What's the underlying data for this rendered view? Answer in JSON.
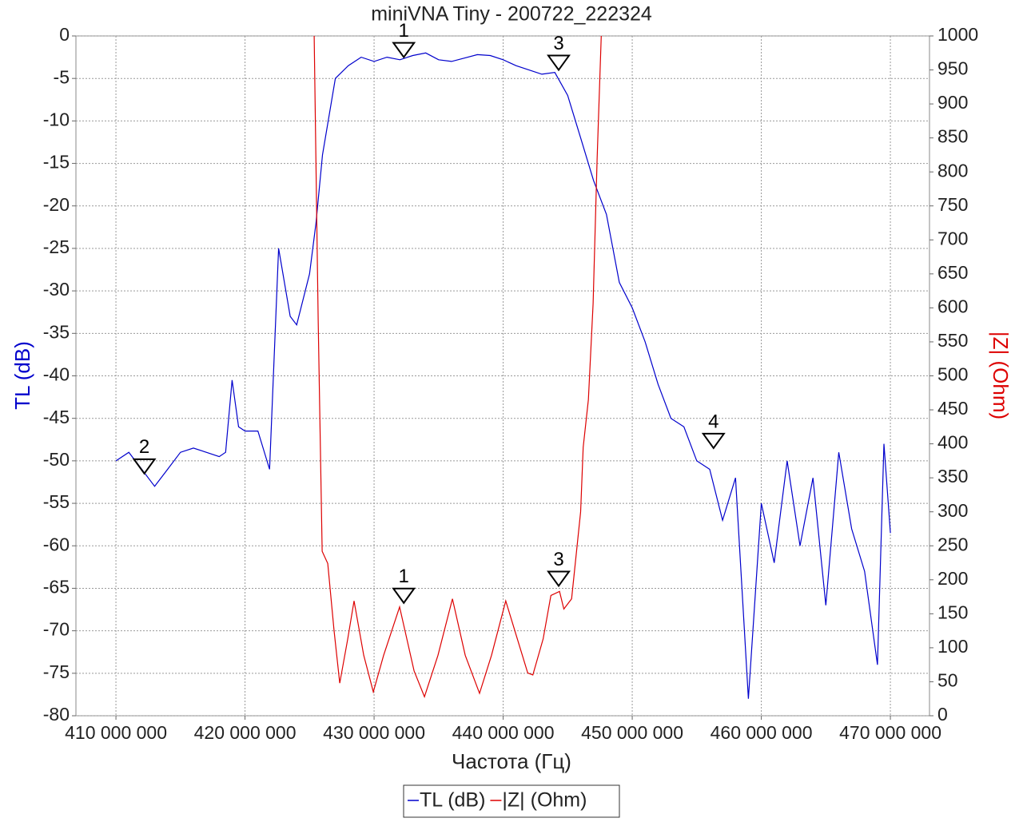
{
  "chart_data": {
    "type": "line",
    "title": "miniVNA Tiny - 200722_222324",
    "xlabel": "Частота (Гц)",
    "ylabel": "TL (dB)",
    "y2label": "|Z| (Ohm)",
    "xlim": [
      406900000,
      473030000
    ],
    "ylim": [
      -80,
      0
    ],
    "y2lim": [
      0,
      1000
    ],
    "grid": true,
    "legend": "bottom",
    "xticks": [
      {
        "value": 410000000,
        "label": "410 000 000"
      },
      {
        "value": 420000000,
        "label": "420 000 000"
      },
      {
        "value": 430000000,
        "label": "430 000 000"
      },
      {
        "value": 440000000,
        "label": "440 000 000"
      },
      {
        "value": 450000000,
        "label": "450 000 000"
      },
      {
        "value": 460000000,
        "label": "460 000 000"
      },
      {
        "value": 470000000,
        "label": "470 000 000"
      }
    ],
    "yticks": [
      0,
      -5,
      -10,
      -15,
      -20,
      -25,
      -30,
      -35,
      -40,
      -45,
      -50,
      -55,
      -60,
      -65,
      -70,
      -75,
      -80
    ],
    "y2ticks": [
      1000,
      950,
      900,
      850,
      800,
      750,
      700,
      650,
      600,
      550,
      500,
      450,
      400,
      350,
      300,
      250,
      200,
      150,
      100,
      50,
      0
    ],
    "series": [
      {
        "name": "TL (dB)",
        "color": "#0000cc",
        "axis": "y",
        "x": [
          410000000,
          411000000,
          412000000,
          413000000,
          414000000,
          415000000,
          416000000,
          417000000,
          418000000,
          418500000,
          419000000,
          419500000,
          420000000,
          421000000,
          421900000,
          422600000,
          423500000,
          424000000,
          425000000,
          425500000,
          426000000,
          427000000,
          428000000,
          429000000,
          430000000,
          431000000,
          432000000,
          433000000,
          434000000,
          435000000,
          436000000,
          437000000,
          438000000,
          439000000,
          440000000,
          441000000,
          442000000,
          443000000,
          444000000,
          445000000,
          446000000,
          447000000,
          448000000,
          449000000,
          450000000,
          451000000,
          452000000,
          453000000,
          454000000,
          455000000,
          456000000,
          457000000,
          458000000,
          459000000,
          460000000,
          461000000,
          462000000,
          463000000,
          464000000,
          465000000,
          466000000,
          467000000,
          468000000,
          469000000,
          469500000,
          470000000
        ],
        "values": [
          -50,
          -49,
          -51,
          -53,
          -51,
          -49,
          -48.5,
          -49,
          -49.5,
          -49,
          -40.5,
          -46,
          -46.5,
          -46.5,
          -51,
          -25,
          -33,
          -34,
          -28,
          -22,
          -14,
          -5,
          -3.5,
          -2.5,
          -3,
          -2.5,
          -2.8,
          -2.3,
          -2,
          -2.8,
          -3,
          -2.6,
          -2.2,
          -2.3,
          -2.8,
          -3.5,
          -4,
          -4.5,
          -4.3,
          -7,
          -12,
          -17,
          -21,
          -29,
          -32,
          -36,
          -41,
          -45,
          -46,
          -50,
          -51,
          -57,
          -52,
          -78,
          -55,
          -62,
          -50,
          -60,
          -52,
          -67,
          -49,
          -58,
          -63,
          -74,
          -48,
          -58.5
        ],
        "markers": [
          {
            "label": "1",
            "x": 432300000,
            "value": -2.5
          },
          {
            "label": "2",
            "x": 412200000,
            "value": -51.5
          },
          {
            "label": "3",
            "x": 444300000,
            "value": -4
          },
          {
            "label": "4",
            "x": 456300000,
            "value": -48.5
          }
        ]
      },
      {
        "name": "|Z| (Ohm)",
        "color": "#dd0000",
        "axis": "y2",
        "x": [
          425360000,
          425670000,
          425980000,
          426410000,
          426900000,
          427340000,
          427960000,
          428450000,
          429200000,
          429940000,
          430740000,
          431980000,
          433100000,
          433900000,
          434950000,
          436070000,
          437060000,
          438170000,
          439100000,
          440200000,
          441100000,
          441900000,
          442300000,
          443100000,
          443700000,
          444370000,
          444700000,
          445300000,
          446000000,
          446200000,
          446600000,
          446970000,
          447280000,
          447600000
        ],
        "values": [
          1000,
          583,
          242,
          224,
          125,
          48,
          113,
          169,
          89,
          35,
          89,
          160,
          66,
          28,
          89,
          172,
          89,
          33,
          89,
          169,
          113,
          63,
          60,
          113,
          177,
          183,
          157,
          172,
          300,
          395,
          465,
          606,
          818,
          1000
        ],
        "markers": [
          {
            "label": "1",
            "x": 432300000,
            "value": 166
          },
          {
            "label": "3",
            "x": 444300000,
            "value": 191
          }
        ]
      }
    ]
  }
}
